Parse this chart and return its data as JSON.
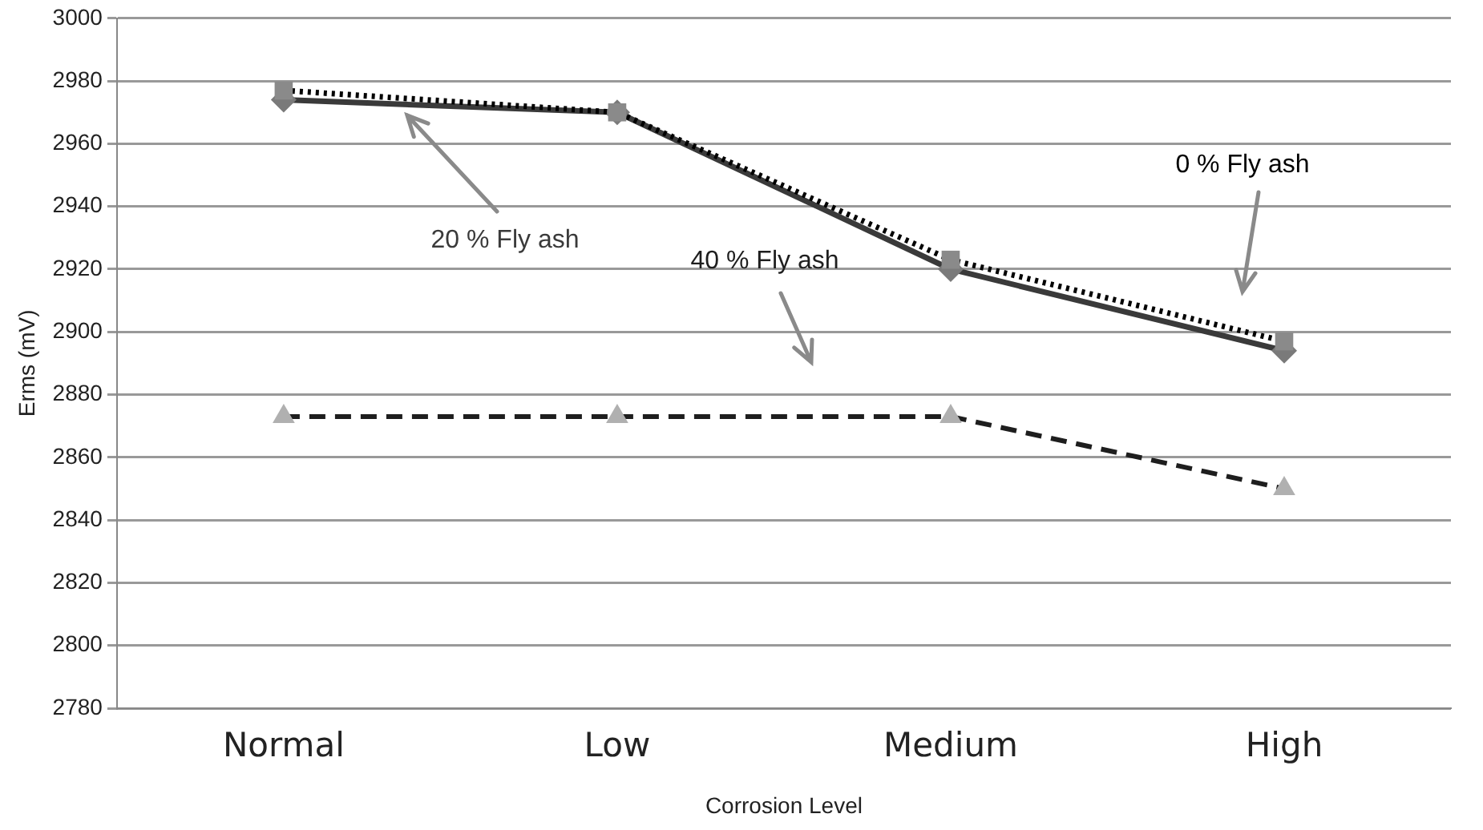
{
  "chart_data": {
    "type": "line",
    "xlabel": "Corrosion Level",
    "ylabel": "Erms (mV)",
    "categories": [
      "Normal",
      "Low",
      "Medium",
      "High"
    ],
    "series": [
      {
        "name": "0 % Fly ash",
        "color": "#000000",
        "line_style": "dotted",
        "marker": "square",
        "values": [
          2977,
          2970,
          2923,
          2897
        ]
      },
      {
        "name": "20 % Fly ash",
        "color": "#3a3a3a",
        "line_style": "solid",
        "marker": "diamond",
        "values": [
          2974,
          2970,
          2920,
          2894
        ]
      },
      {
        "name": "40 % Fly ash",
        "color": "#1e1e1e",
        "line_style": "dashed",
        "marker": "triangle",
        "values": [
          2873,
          2873,
          2873,
          2850
        ]
      }
    ],
    "ylim": [
      2780,
      3000
    ],
    "yticks": [
      2780,
      2800,
      2820,
      2840,
      2860,
      2880,
      2900,
      2920,
      2940,
      2960,
      2980,
      3000
    ],
    "grid": "y",
    "legend": false
  }
}
